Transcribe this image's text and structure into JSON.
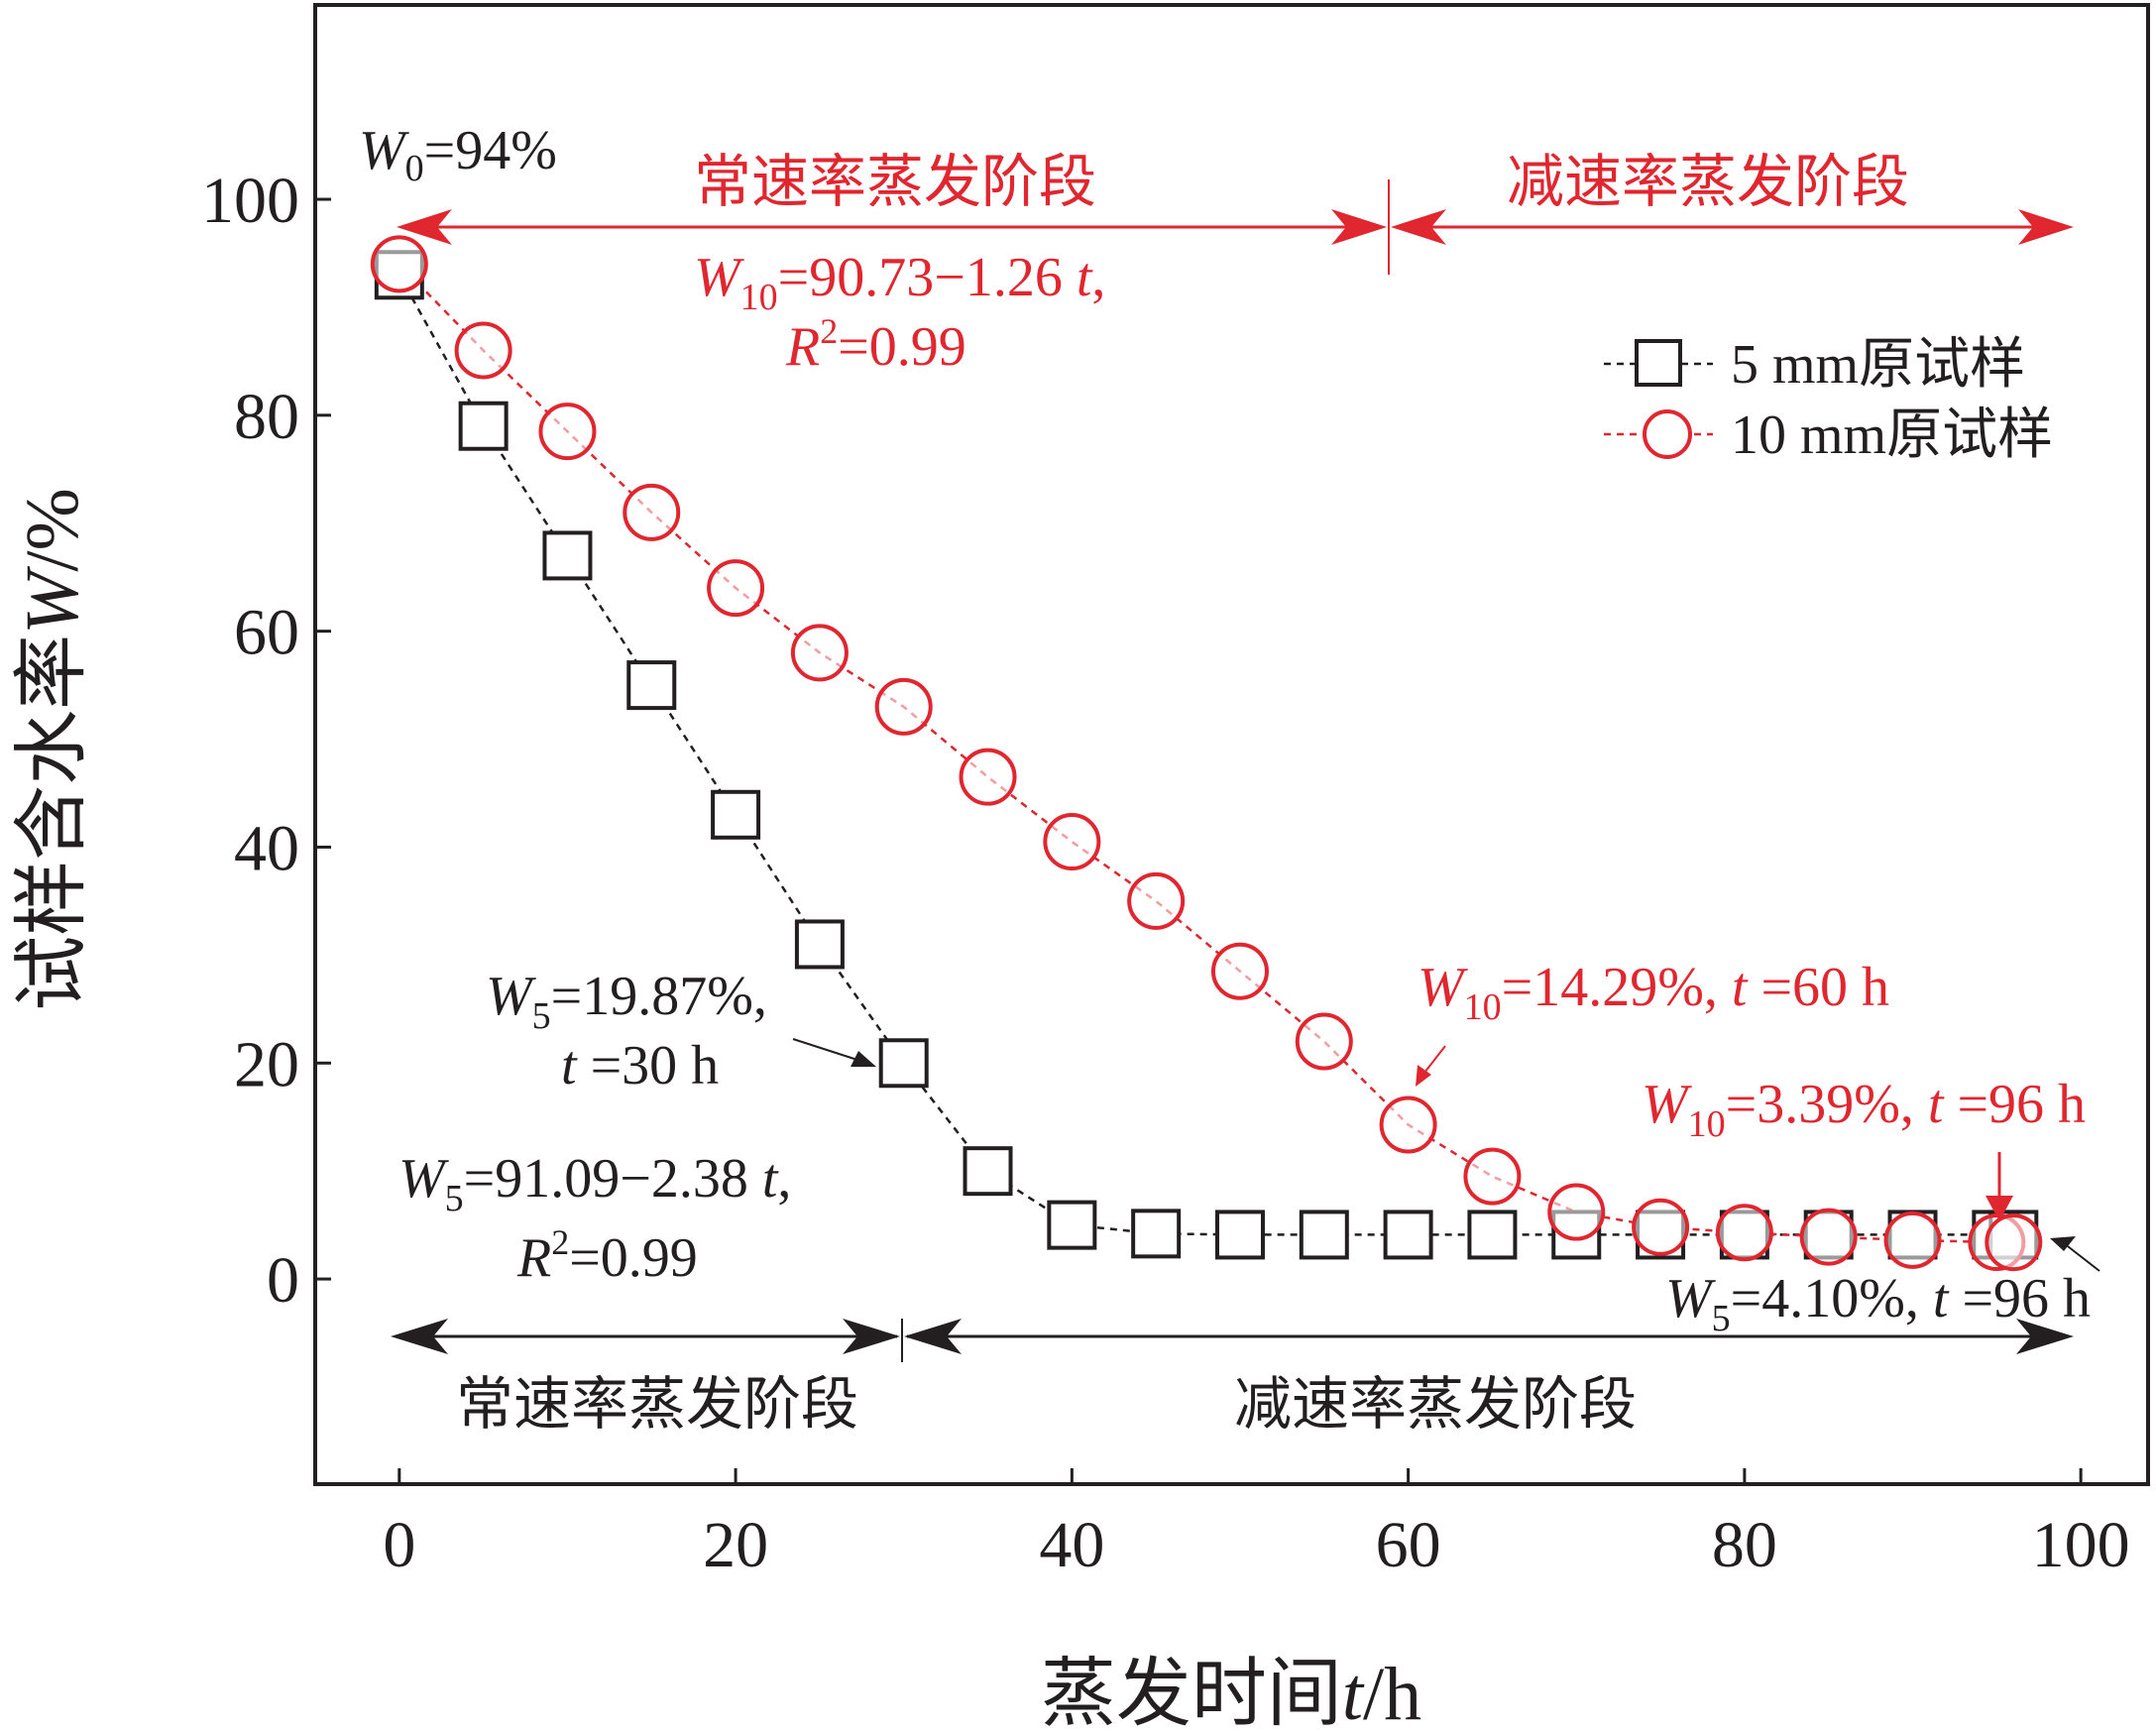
{
  "chart_data": {
    "type": "scatter",
    "xlabel": {
      "prefix": "蒸发时间",
      "var": "t",
      "suffix": "/h"
    },
    "ylabel": {
      "prefix": "试样含水率",
      "var": "W",
      "suffix": "/%"
    },
    "xlim": [
      -5,
      104
    ],
    "ylim": [
      -19,
      118
    ],
    "xticks": [
      0,
      20,
      40,
      60,
      80,
      100
    ],
    "yticks": [
      0,
      20,
      40,
      60,
      80,
      100
    ],
    "grid": false,
    "legend_position": "top-right",
    "series": [
      {
        "name": "5 mm原试样",
        "marker": "square",
        "color": "#231f20",
        "x": [
          0,
          5,
          10,
          15,
          20,
          25,
          30,
          35,
          40,
          45,
          50,
          55,
          60,
          65,
          70,
          75,
          80,
          85,
          90,
          95,
          96
        ],
        "y": [
          93,
          79,
          67,
          55,
          43,
          31,
          20,
          10,
          5,
          4.2,
          4.1,
          4.1,
          4.1,
          4.1,
          4.1,
          4.1,
          4.1,
          4.1,
          4.1,
          4.1,
          4.1
        ]
      },
      {
        "name": "10 mm原试样",
        "marker": "circle",
        "color": "#e0262f",
        "x": [
          0,
          5,
          10,
          15,
          20,
          25,
          30,
          35,
          40,
          45,
          50,
          55,
          60,
          65,
          70,
          75,
          80,
          85,
          90,
          95,
          96
        ],
        "y": [
          94,
          86,
          78.5,
          71,
          64,
          58,
          53,
          46.5,
          40.5,
          35,
          28.5,
          22,
          14.29,
          9.5,
          6.2,
          4.8,
          4.3,
          3.9,
          3.6,
          3.4,
          3.39
        ]
      }
    ],
    "annotations": {
      "w0": {
        "sym": "W",
        "sub": "0",
        "rest": "=94%"
      },
      "fit10": {
        "sym": "W",
        "sub": "10",
        "eq": "=90.73−1.26 ",
        "var": "t",
        "tail": ",",
        "r_sym": "R",
        "r_sup": "2",
        "r_rest": "=0.99"
      },
      "fit5": {
        "sym": "W",
        "sub": "5",
        "eq": "=91.09−2.38 ",
        "var": "t",
        "tail": ",",
        "r_sym": "R",
        "r_sup": "2",
        "r_rest": "=0.99"
      },
      "pt5_30": {
        "sym": "W",
        "sub": "5",
        "rest": "=19.87%,",
        "var": "t",
        "tail": " =30 h"
      },
      "pt10_60": {
        "sym": "W",
        "sub": "10",
        "rest": "=14.29%, ",
        "var": "t",
        "tail": " =60 h"
      },
      "pt10_96": {
        "sym": "W",
        "sub": "10",
        "rest": "=3.39%, ",
        "var": "t",
        "tail": " =96 h"
      },
      "pt5_96": {
        "sym": "W",
        "sub": "5",
        "rest": "=4.10%, ",
        "var": "t",
        "tail": " =96 h"
      }
    },
    "stages": {
      "top_constant": "常速率蒸发阶段",
      "top_falling": "减速率蒸发阶段",
      "bottom_constant": "常速率蒸发阶段",
      "bottom_falling": "减速率蒸发阶段"
    },
    "colors": {
      "black": "#231f20",
      "red": "#e0262f"
    }
  }
}
